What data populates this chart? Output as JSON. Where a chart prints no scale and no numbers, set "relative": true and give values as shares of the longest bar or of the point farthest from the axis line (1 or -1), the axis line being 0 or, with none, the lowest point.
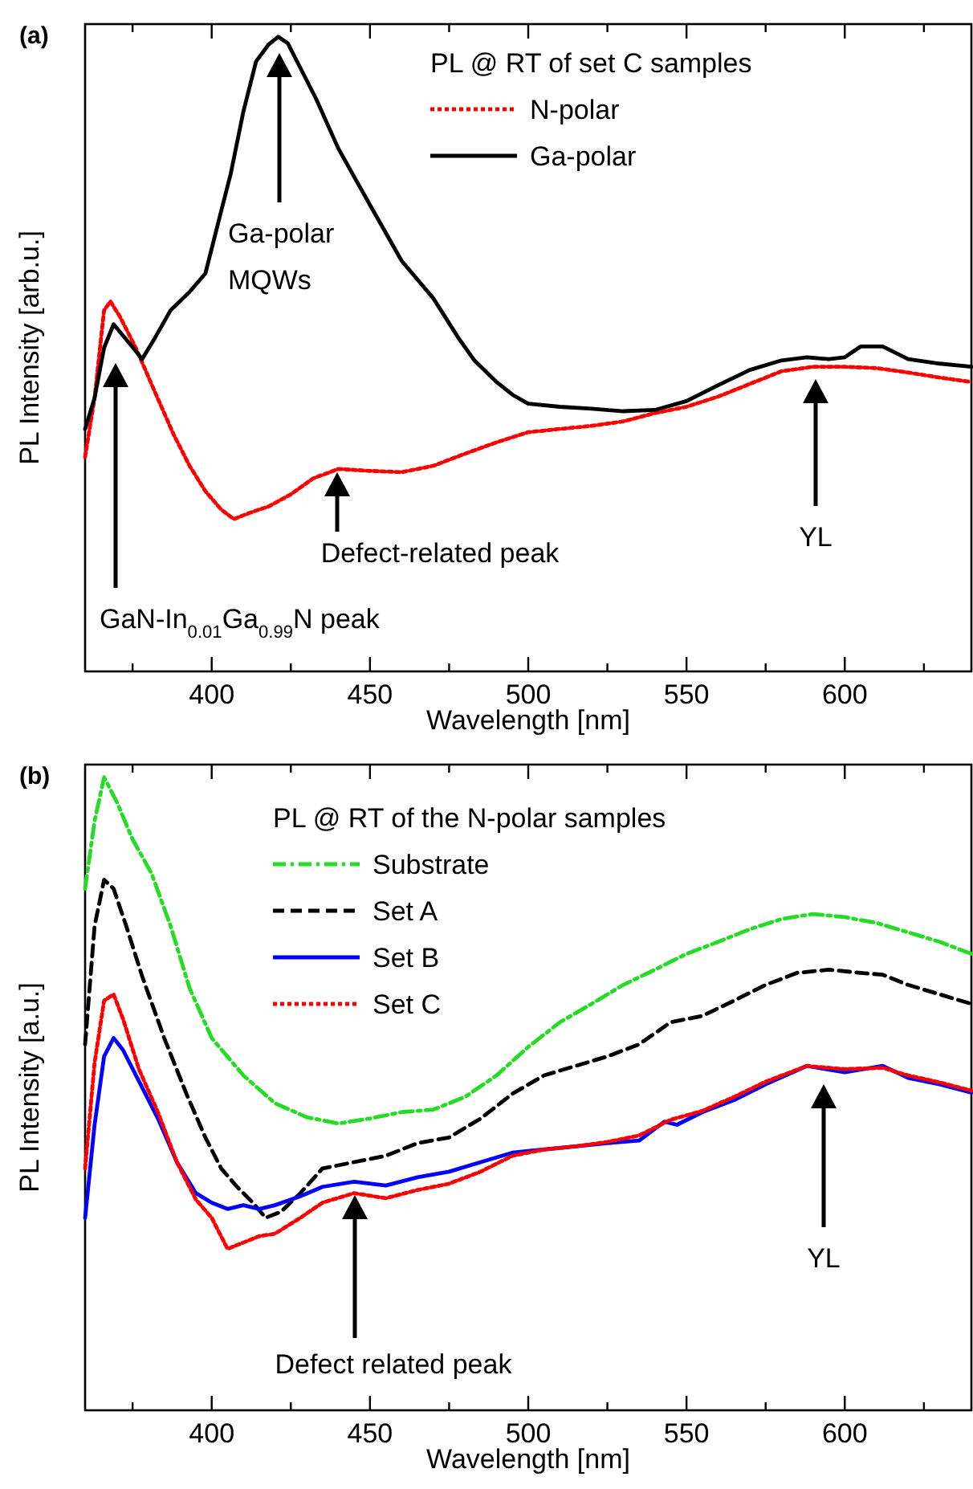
{
  "chart_data": [
    {
      "type": "line",
      "title": "(a)",
      "xlabel": "Wavelength [nm]",
      "ylabel": "PL Intensity [arb.u.]",
      "legend_title": "PL @ RT of set C samples",
      "legend": "top right",
      "relative": true,
      "tick_labels": "x",
      "xlim": [
        360,
        640
      ],
      "xticks": [
        {
          "value": 375,
          "label": null
        },
        400,
        {
          "value": 425,
          "label": null
        },
        450,
        {
          "value": 475,
          "label": null
        },
        500,
        {
          "value": 525,
          "label": null
        },
        550,
        {
          "value": 575,
          "label": null
        },
        600,
        {
          "value": 625,
          "label": null
        }
      ],
      "series": [
        {
          "name": "N-polar",
          "color": "#ff0000",
          "line_style": "dotted",
          "x": [
            360,
            363,
            366,
            368,
            371,
            376,
            382,
            388,
            393,
            398,
            403,
            407,
            412,
            418,
            425,
            432,
            440,
            450,
            460,
            470,
            480,
            490,
            500,
            510,
            520,
            530,
            540,
            550,
            560,
            570,
            580,
            590,
            600,
            610,
            620,
            630,
            640
          ],
          "values": [
            0.338,
            0.431,
            0.569,
            0.583,
            0.559,
            0.51,
            0.441,
            0.373,
            0.324,
            0.284,
            0.255,
            0.24,
            0.25,
            0.26,
            0.279,
            0.304,
            0.319,
            0.316,
            0.314,
            0.324,
            0.343,
            0.361,
            0.377,
            0.382,
            0.387,
            0.394,
            0.407,
            0.417,
            0.433,
            0.453,
            0.473,
            0.48,
            0.48,
            0.478,
            0.471,
            0.463,
            0.456
          ]
        },
        {
          "name": "Ga-polar",
          "color": "#000000",
          "line_style": "solid",
          "x": [
            360,
            363,
            366,
            369,
            372,
            376,
            378,
            382,
            387,
            393,
            398,
            402,
            406,
            410,
            414,
            418,
            421,
            424,
            428,
            433,
            440,
            450,
            460,
            470,
            478,
            483,
            490,
            495,
            500,
            510,
            520,
            530,
            540,
            550,
            560,
            570,
            580,
            588,
            595,
            600,
            605,
            612,
            620,
            630,
            640
          ],
          "values": [
            0.382,
            0.431,
            0.51,
            0.547,
            0.529,
            0.505,
            0.492,
            0.525,
            0.569,
            0.598,
            0.627,
            0.706,
            0.784,
            0.882,
            0.961,
            0.988,
            1.0,
            0.99,
            0.951,
            0.902,
            0.824,
            0.735,
            0.647,
            0.588,
            0.525,
            0.49,
            0.456,
            0.436,
            0.422,
            0.417,
            0.414,
            0.41,
            0.412,
            0.426,
            0.451,
            0.475,
            0.49,
            0.495,
            0.492,
            0.495,
            0.512,
            0.512,
            0.492,
            0.485,
            0.48
          ]
        }
      ],
      "annotations": [
        "Ga-polar MQWs",
        "GaN-In$_{0.01}$Ga$_{0.99}$N peak",
        "Defect-related peak",
        "YL"
      ]
    },
    {
      "type": "line",
      "title": "(b)",
      "xlabel": "Wavelength [nm]",
      "ylabel": "PL Intensity [a.u.]",
      "legend_title": "PL @ RT of the N-polar samples",
      "legend": "top",
      "relative": true,
      "tick_labels": "x",
      "xlim": [
        360,
        640
      ],
      "xticks": [
        {
          "value": 375,
          "label": null
        },
        400,
        {
          "value": 425,
          "label": null
        },
        450,
        {
          "value": 475,
          "label": null
        },
        500,
        {
          "value": 525,
          "label": null
        },
        550,
        {
          "value": 575,
          "label": null
        },
        600,
        {
          "value": 625,
          "label": null
        }
      ],
      "series": [
        {
          "name": "Substrate",
          "color": "#22dd22",
          "line_style": "dashdot",
          "x": [
            360,
            363,
            366,
            370,
            375,
            381,
            387,
            393,
            400,
            410,
            420,
            430,
            440,
            450,
            460,
            470,
            480,
            490,
            500,
            510,
            520,
            530,
            540,
            550,
            560,
            570,
            580,
            590,
            600,
            610,
            620,
            630,
            640
          ],
          "values": [
            0.824,
            0.931,
            1.0,
            0.961,
            0.902,
            0.848,
            0.765,
            0.667,
            0.588,
            0.529,
            0.485,
            0.463,
            0.453,
            0.461,
            0.471,
            0.475,
            0.495,
            0.529,
            0.574,
            0.613,
            0.642,
            0.672,
            0.696,
            0.721,
            0.74,
            0.76,
            0.776,
            0.784,
            0.779,
            0.77,
            0.755,
            0.74,
            0.721
          ]
        },
        {
          "name": "Set A",
          "color": "#000000",
          "line_style": "dashed",
          "x": [
            360,
            363,
            366,
            369,
            373,
            378,
            385,
            392,
            398,
            403,
            408,
            413,
            417,
            422,
            428,
            435,
            445,
            455,
            465,
            475,
            485,
            495,
            505,
            515,
            525,
            535,
            545,
            555,
            565,
            575,
            585,
            595,
            605,
            612,
            620,
            630,
            640
          ],
          "values": [
            0.578,
            0.765,
            0.838,
            0.824,
            0.765,
            0.686,
            0.588,
            0.5,
            0.431,
            0.382,
            0.353,
            0.328,
            0.304,
            0.314,
            0.343,
            0.382,
            0.392,
            0.402,
            0.422,
            0.431,
            0.461,
            0.5,
            0.529,
            0.544,
            0.559,
            0.578,
            0.613,
            0.623,
            0.647,
            0.672,
            0.691,
            0.696,
            0.691,
            0.688,
            0.672,
            0.657,
            0.642
          ]
        },
        {
          "name": "Set B",
          "color": "#0000ff",
          "line_style": "solid",
          "x": [
            360,
            363,
            366,
            369,
            372,
            377,
            383,
            389,
            395,
            400,
            405,
            410,
            415,
            420,
            428,
            435,
            445,
            455,
            465,
            475,
            485,
            495,
            505,
            515,
            525,
            535,
            543,
            547,
            555,
            565,
            575,
            588,
            600,
            612,
            620,
            630,
            640
          ],
          "values": [
            0.304,
            0.451,
            0.559,
            0.588,
            0.569,
            0.52,
            0.461,
            0.392,
            0.343,
            0.328,
            0.318,
            0.324,
            0.318,
            0.324,
            0.338,
            0.353,
            0.361,
            0.355,
            0.368,
            0.377,
            0.392,
            0.407,
            0.412,
            0.417,
            0.422,
            0.426,
            0.456,
            0.451,
            0.471,
            0.49,
            0.515,
            0.544,
            0.534,
            0.544,
            0.525,
            0.515,
            0.502
          ]
        },
        {
          "name": "Set C",
          "color": "#ff0000",
          "line_style": "dotted",
          "x": [
            360,
            363,
            366,
            369,
            372,
            377,
            383,
            389,
            395,
            400,
            405,
            410,
            415,
            420,
            428,
            435,
            445,
            455,
            465,
            475,
            485,
            495,
            505,
            515,
            525,
            535,
            545,
            555,
            565,
            575,
            588,
            600,
            612,
            620,
            630,
            640
          ],
          "values": [
            0.382,
            0.549,
            0.647,
            0.657,
            0.618,
            0.539,
            0.471,
            0.392,
            0.333,
            0.304,
            0.255,
            0.265,
            0.275,
            0.279,
            0.304,
            0.328,
            0.343,
            0.335,
            0.348,
            0.358,
            0.377,
            0.402,
            0.412,
            0.417,
            0.424,
            0.434,
            0.459,
            0.473,
            0.495,
            0.519,
            0.544,
            0.539,
            0.541,
            0.529,
            0.518,
            0.505
          ]
        }
      ],
      "annotations": [
        "Defect related peak",
        "YL"
      ]
    }
  ]
}
